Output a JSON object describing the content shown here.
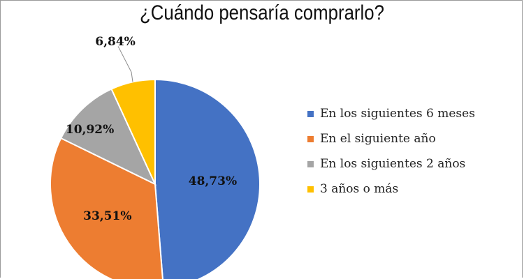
{
  "chart_data": {
    "type": "pie",
    "title": "¿Cuándo pensaría comprarlo?",
    "categories": [
      "En los siguientes 6 meses",
      "En el siguiente año",
      "En los siguientes 2 años",
      "3 años o más"
    ],
    "values": [
      48.73,
      33.51,
      10.92,
      6.84
    ],
    "labels": [
      "48,73%",
      "33,51%",
      "10,92%",
      "6,84%"
    ],
    "colors": [
      "#4472c4",
      "#ed7d31",
      "#a5a5a5",
      "#ffc000"
    ],
    "legend": "right"
  }
}
